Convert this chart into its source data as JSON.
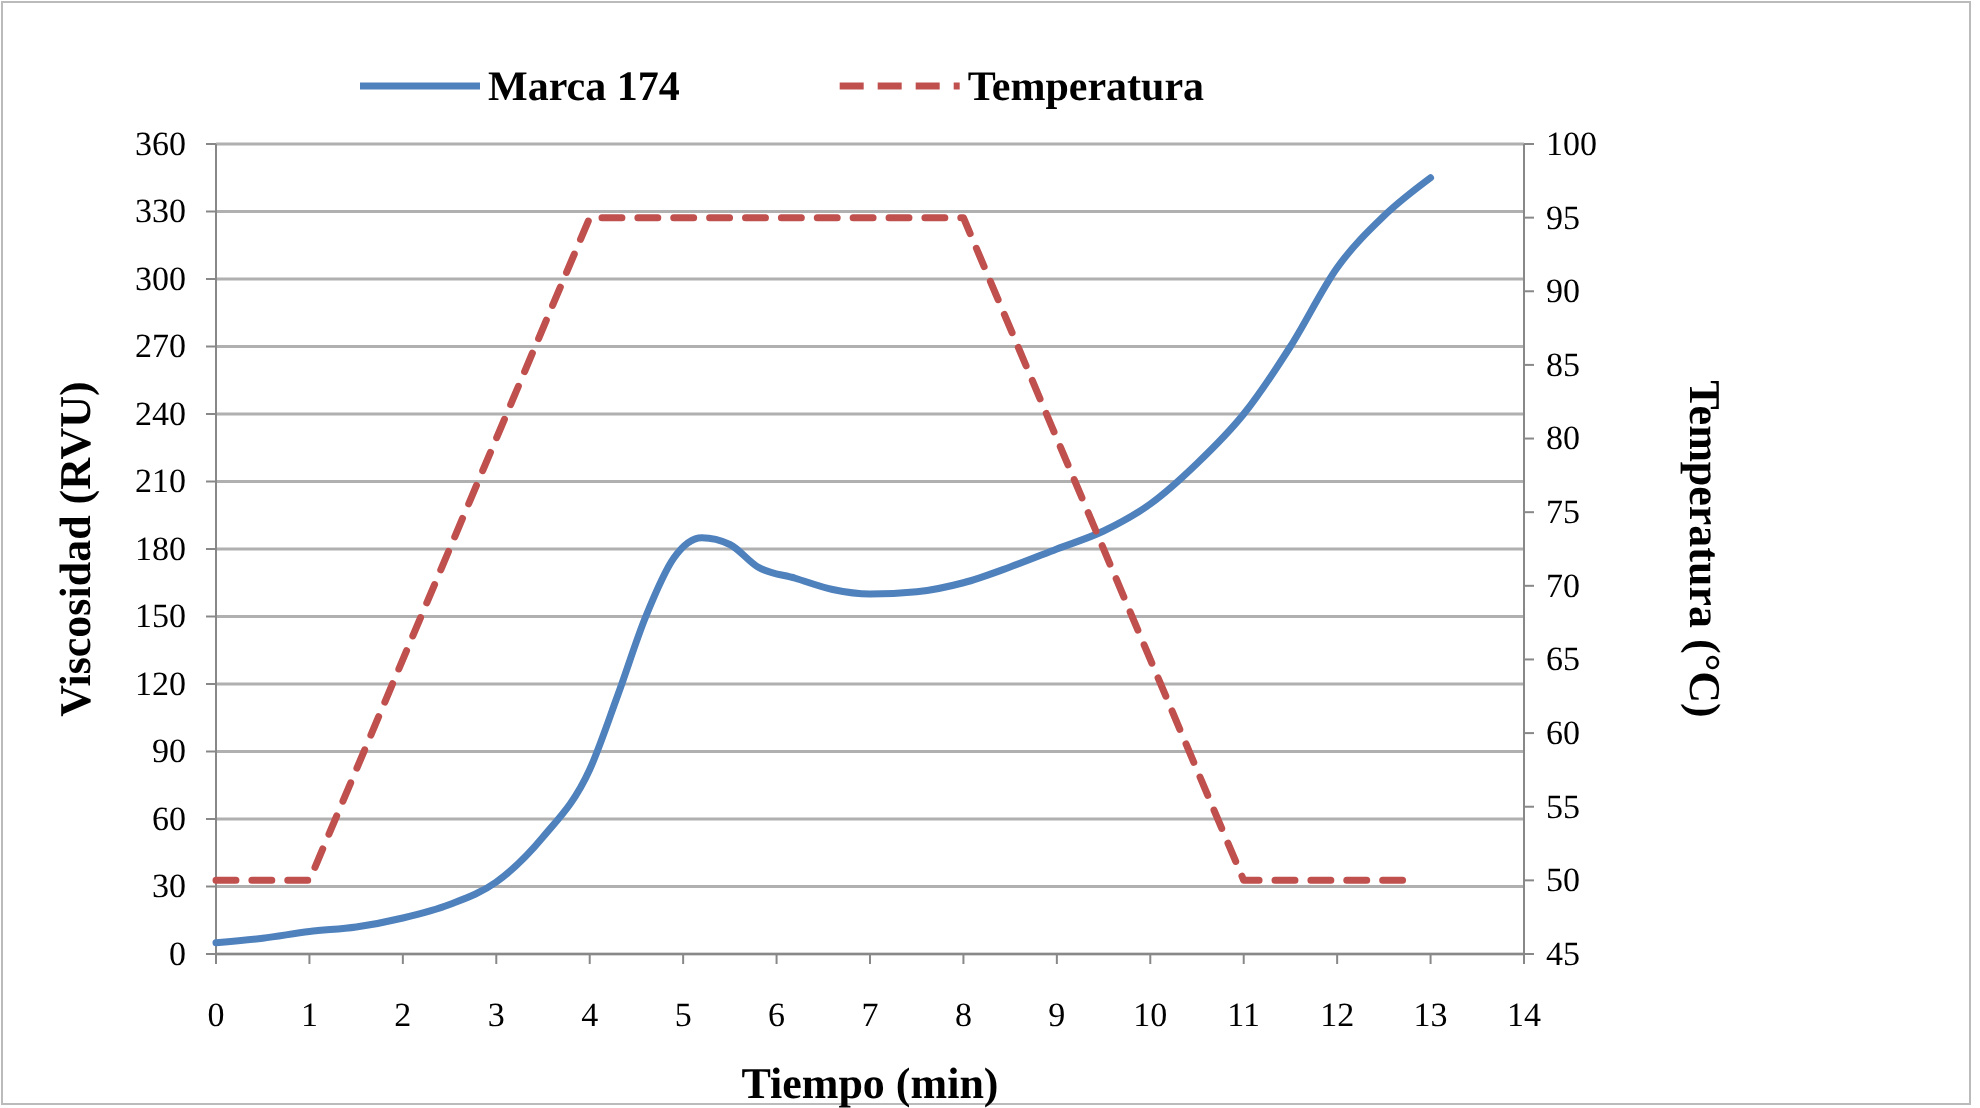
{
  "chart_data": {
    "type": "line",
    "xlabel": "Tiempo  (min)",
    "ylabel": "Viscosidad  (RVU)",
    "y2label": "Temperatura (°C)",
    "xlim": [
      0,
      14
    ],
    "xticks": [
      0,
      1,
      2,
      3,
      4,
      5,
      6,
      7,
      8,
      9,
      10,
      11,
      12,
      13,
      14
    ],
    "ylim": [
      0,
      360
    ],
    "yticks": [
      0,
      30,
      60,
      90,
      120,
      150,
      180,
      210,
      240,
      270,
      300,
      330,
      360
    ],
    "y2lim": [
      45,
      100
    ],
    "y2ticks": [
      45,
      50,
      55,
      60,
      65,
      70,
      75,
      80,
      85,
      90,
      95,
      100
    ],
    "legend": "top",
    "grid": "y",
    "series": [
      {
        "name": "Marca 174",
        "color": "#4f81bd",
        "line_style": "solid",
        "x": [
          0,
          0.5,
          1,
          1.5,
          2,
          2.5,
          3,
          3.5,
          4,
          4.3,
          4.6,
          4.9,
          5.2,
          5.5,
          5.8,
          6.2,
          6.6,
          7,
          7.5,
          8,
          8.5,
          9,
          9.5,
          10,
          10.5,
          11,
          11.5,
          12,
          12.5,
          13
        ],
        "values": [
          5,
          7,
          10,
          12,
          16,
          22,
          32,
          52,
          82,
          115,
          150,
          176,
          185,
          182,
          172,
          167,
          162,
          160,
          161,
          165,
          172,
          180,
          188,
          200,
          218,
          240,
          270,
          305,
          328,
          345
        ]
      },
      {
        "name": "Temperatura",
        "color": "#c0504d",
        "line_style": "dashed",
        "axis": "y2",
        "x": [
          0,
          1,
          4,
          8,
          11,
          12.7
        ],
        "values": [
          50,
          50,
          95,
          95,
          50,
          50
        ]
      }
    ]
  }
}
